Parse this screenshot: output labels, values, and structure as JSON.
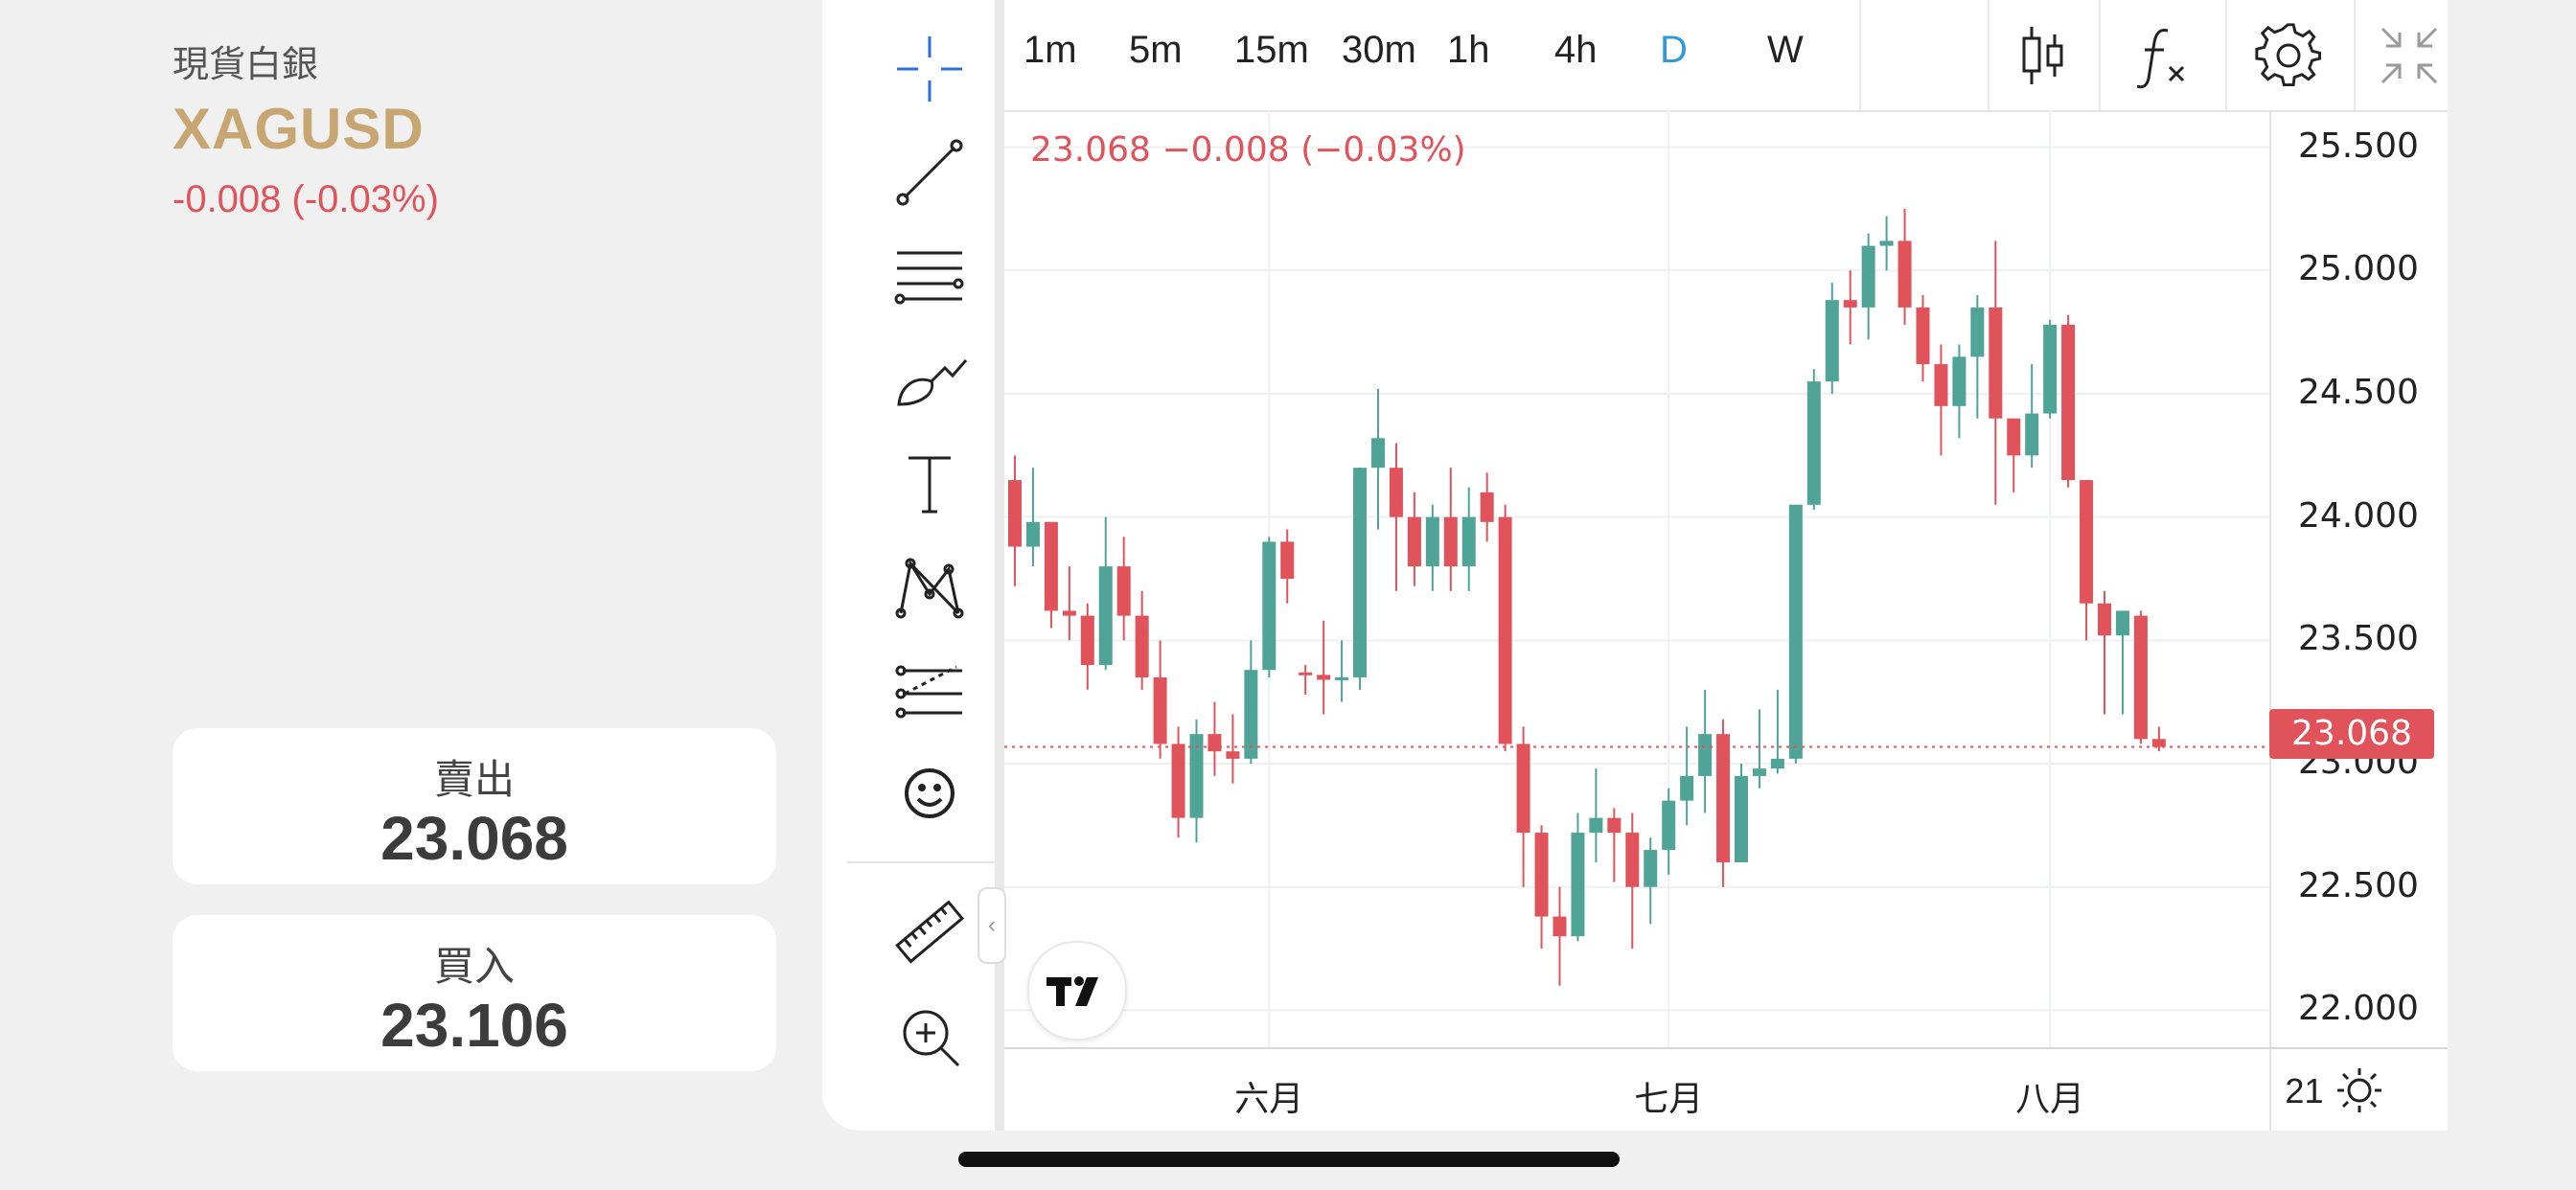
{
  "instrument": {
    "name": "現貨白銀",
    "symbol": "XAGUSD",
    "change": "-0.008 (-0.03%)"
  },
  "quotes": {
    "sell_label": "賣出",
    "sell_value": "23.068",
    "buy_label": "買入",
    "buy_value": "23.106"
  },
  "timeframes": [
    "1m",
    "5m",
    "15m",
    "30m",
    "1h",
    "4h",
    "D",
    "W"
  ],
  "active_timeframe": "D",
  "toolbar_icons": [
    "candlestick-chart-icon",
    "indicators-fx-icon",
    "gear-icon",
    "collapse-fullscreen-icon"
  ],
  "drawing_tools": [
    "crosshair-icon",
    "trend-line-icon",
    "fib-retracement-icon",
    "brush-icon",
    "text-icon",
    "pattern-icon",
    "forecast-icon",
    "emoji-icon",
    "ruler-icon",
    "zoom-in-icon"
  ],
  "legend": "23.068  −0.008 (−0.03%)",
  "current_price_label": "23.068",
  "colors": {
    "up": "#4fa397",
    "down": "#e0535a",
    "accent": "#c8a672",
    "active": "#2d9bdb"
  },
  "chart_data": {
    "type": "candlestick",
    "y_ticks": [
      "25.500",
      "25.000",
      "24.500",
      "24.000",
      "23.500",
      "23.000",
      "22.500",
      "22.000"
    ],
    "ylim": [
      21.85,
      25.65
    ],
    "x_ticks": [
      {
        "label": "六月",
        "index": 14
      },
      {
        "label": "七月",
        "index": 36
      },
      {
        "label": "八月",
        "index": 57
      },
      {
        "label": "21",
        "index": 71
      }
    ],
    "last_price": 23.068,
    "candles": [
      [
        24.15,
        23.88,
        24.25,
        23.72
      ],
      [
        23.88,
        23.98,
        24.2,
        23.8
      ],
      [
        23.98,
        23.62,
        23.98,
        23.55
      ],
      [
        23.62,
        23.6,
        23.8,
        23.5
      ],
      [
        23.6,
        23.4,
        23.65,
        23.3
      ],
      [
        23.4,
        23.8,
        24.0,
        23.38
      ],
      [
        23.8,
        23.6,
        23.92,
        23.5
      ],
      [
        23.6,
        23.35,
        23.7,
        23.3
      ],
      [
        23.35,
        23.08,
        23.5,
        23.02
      ],
      [
        23.08,
        22.78,
        23.15,
        22.7
      ],
      [
        22.78,
        23.12,
        23.18,
        22.68
      ],
      [
        23.12,
        23.05,
        23.25,
        22.95
      ],
      [
        23.05,
        23.02,
        23.2,
        22.92
      ],
      [
        23.02,
        23.38,
        23.5,
        23.0
      ],
      [
        23.38,
        23.9,
        23.92,
        23.35
      ],
      [
        23.9,
        23.75,
        23.95,
        23.65
      ],
      [
        23.37,
        23.36,
        23.4,
        23.28
      ],
      [
        23.36,
        23.34,
        23.58,
        23.2
      ],
      [
        23.34,
        23.35,
        23.5,
        23.25
      ],
      [
        23.35,
        24.2,
        24.2,
        23.3
      ],
      [
        24.2,
        24.32,
        24.52,
        23.95
      ],
      [
        24.2,
        24.0,
        24.3,
        23.7
      ],
      [
        24.0,
        23.8,
        24.1,
        23.72
      ],
      [
        23.8,
        24.0,
        24.05,
        23.7
      ],
      [
        24.0,
        23.8,
        24.2,
        23.7
      ],
      [
        23.8,
        24.0,
        24.12,
        23.7
      ],
      [
        24.1,
        23.98,
        24.18,
        23.9
      ],
      [
        24.0,
        23.08,
        24.05,
        23.05
      ],
      [
        23.08,
        22.72,
        23.15,
        22.5
      ],
      [
        22.72,
        22.38,
        22.75,
        22.25
      ],
      [
        22.38,
        22.3,
        22.5,
        22.1
      ],
      [
        22.3,
        22.72,
        22.8,
        22.28
      ],
      [
        22.72,
        22.78,
        22.98,
        22.6
      ],
      [
        22.78,
        22.72,
        22.82,
        22.52
      ],
      [
        22.72,
        22.5,
        22.8,
        22.25
      ],
      [
        22.5,
        22.65,
        22.7,
        22.35
      ],
      [
        22.65,
        22.85,
        22.9,
        22.55
      ],
      [
        22.85,
        22.95,
        23.15,
        22.75
      ],
      [
        22.95,
        23.12,
        23.3,
        22.8
      ],
      [
        23.12,
        22.6,
        23.18,
        22.5
      ],
      [
        22.6,
        22.95,
        23.0,
        22.62
      ],
      [
        22.95,
        22.98,
        23.22,
        22.9
      ],
      [
        22.98,
        23.02,
        23.3,
        22.96
      ],
      [
        23.02,
        24.05,
        24.05,
        23.0
      ],
      [
        24.05,
        24.55,
        24.6,
        24.03
      ],
      [
        24.55,
        24.88,
        24.95,
        24.5
      ],
      [
        24.88,
        24.85,
        25.0,
        24.7
      ],
      [
        24.85,
        25.1,
        25.15,
        24.72
      ],
      [
        25.1,
        25.12,
        25.22,
        25.0
      ],
      [
        25.12,
        24.85,
        25.25,
        24.78
      ],
      [
        24.85,
        24.62,
        24.9,
        24.55
      ],
      [
        24.62,
        24.45,
        24.7,
        24.25
      ],
      [
        24.45,
        24.65,
        24.7,
        24.32
      ],
      [
        24.65,
        24.85,
        24.9,
        24.4
      ],
      [
        24.85,
        24.4,
        25.12,
        24.05
      ],
      [
        24.4,
        24.25,
        24.4,
        24.1
      ],
      [
        24.25,
        24.42,
        24.62,
        24.2
      ],
      [
        24.42,
        24.78,
        24.8,
        24.4
      ],
      [
        24.78,
        24.15,
        24.82,
        24.12
      ],
      [
        24.15,
        23.65,
        24.15,
        23.5
      ],
      [
        23.65,
        23.52,
        23.7,
        23.2
      ],
      [
        23.52,
        23.62,
        23.62,
        23.2
      ],
      [
        23.6,
        23.1,
        23.62,
        23.08
      ],
      [
        23.1,
        23.068,
        23.15,
        23.05
      ]
    ]
  }
}
